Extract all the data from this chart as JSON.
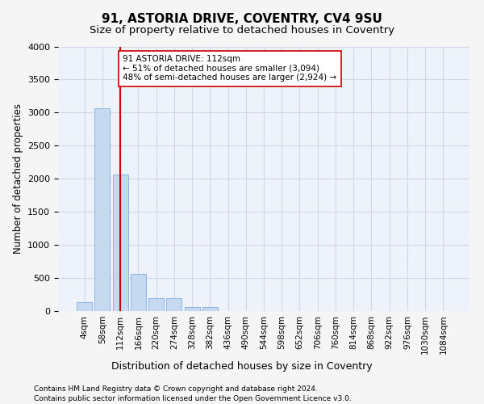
{
  "title_line1": "91, ASTORIA DRIVE, COVENTRY, CV4 9SU",
  "title_line2": "Size of property relative to detached houses in Coventry",
  "xlabel": "Distribution of detached houses by size in Coventry",
  "ylabel": "Number of detached properties",
  "annotation_title": "91 ASTORIA DRIVE: 112sqm",
  "annotation_line2": "← 51% of detached houses are smaller (3,094)",
  "annotation_line3": "48% of semi-detached houses are larger (2,924) →",
  "footer_line1": "Contains HM Land Registry data © Crown copyright and database right 2024.",
  "footer_line2": "Contains public sector information licensed under the Open Government Licence v3.0.",
  "bin_labels": [
    "4sqm",
    "58sqm",
    "112sqm",
    "166sqm",
    "220sqm",
    "274sqm",
    "328sqm",
    "382sqm",
    "436sqm",
    "490sqm",
    "544sqm",
    "598sqm",
    "652sqm",
    "706sqm",
    "760sqm",
    "814sqm",
    "868sqm",
    "922sqm",
    "976sqm",
    "1030sqm",
    "1084sqm"
  ],
  "bar_values": [
    130,
    3060,
    2060,
    560,
    195,
    195,
    65,
    55,
    0,
    0,
    0,
    0,
    0,
    0,
    0,
    0,
    0,
    0,
    0,
    0,
    0
  ],
  "bar_color": "#c5d9f1",
  "bar_edge_color": "#8db4e2",
  "marker_value_index": 2,
  "marker_color": "#cc0000",
  "ylim": [
    0,
    4000
  ],
  "yticks": [
    0,
    500,
    1000,
    1500,
    2000,
    2500,
    3000,
    3500,
    4000
  ],
  "grid_color": "#d0d8e8",
  "background_color": "#eef2fa",
  "fig_background_color": "#f5f5f5",
  "annotation_box_color": "#ffffff",
  "annotation_box_edge": "#cc0000"
}
